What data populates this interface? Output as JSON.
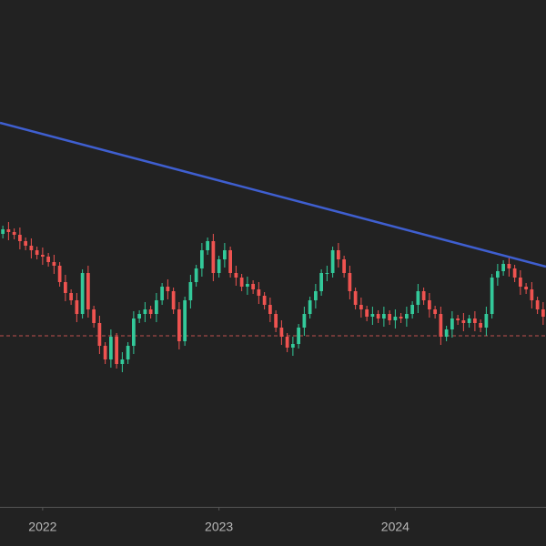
{
  "chart_data": {
    "type": "candlestick",
    "categories": [
      null,
      null,
      null,
      null,
      null,
      null,
      null,
      null,
      null,
      null,
      null,
      null,
      null,
      null,
      null,
      null,
      null,
      null,
      null,
      null,
      null,
      null,
      null,
      null,
      null,
      null,
      null,
      null,
      null,
      null,
      null,
      null,
      null,
      null,
      null,
      null,
      null,
      null,
      null,
      null,
      null,
      null,
      null,
      null,
      null,
      null,
      null,
      null,
      null,
      null,
      null,
      null,
      null,
      null,
      null,
      null,
      null,
      null,
      null,
      null,
      null,
      null,
      null,
      null,
      null,
      null,
      null,
      null,
      null,
      null,
      null,
      null,
      null,
      null,
      null,
      null,
      null,
      null,
      null,
      null,
      null,
      null,
      null,
      null,
      null,
      null,
      null,
      null,
      null,
      null,
      null,
      null,
      null,
      null,
      null,
      null
    ],
    "xticks": [
      {
        "value": 7,
        "label": "2022"
      },
      {
        "value": 38,
        "label": "2023"
      },
      {
        "value": 69,
        "label": "2024"
      }
    ],
    "ylim": [
      0,
      557
    ],
    "up_color": "#33c99a",
    "down_color": "#ef5350",
    "open": [
      300,
      305,
      302,
      299,
      292,
      287,
      282,
      277,
      275,
      269,
      265,
      247,
      235,
      227,
      212,
      257,
      217,
      202,
      177,
      162,
      187,
      157,
      162,
      177,
      207,
      212,
      217,
      212,
      227,
      242,
      237,
      217,
      182,
      227,
      247,
      262,
      282,
      292,
      257,
      272,
      282,
      257,
      252,
      242,
      245,
      239,
      232,
      222,
      212,
      197,
      187,
      175,
      179,
      197,
      212,
      227,
      237,
      257,
      257,
      282,
      272,
      257,
      237,
      222,
      217,
      209,
      212,
      207,
      212,
      205,
      209,
      207,
      212,
      222,
      237,
      227,
      217,
      212,
      187,
      195,
      207,
      205,
      202,
      207,
      202,
      197,
      212,
      252,
      259,
      267,
      262,
      252,
      242,
      239,
      227,
      217
    ],
    "high": [
      309,
      313,
      306,
      307,
      296,
      295,
      286,
      285,
      279,
      277,
      269,
      255,
      239,
      235,
      261,
      265,
      221,
      210,
      181,
      195,
      191,
      170,
      181,
      215,
      216,
      225,
      221,
      235,
      246,
      250,
      241,
      225,
      231,
      255,
      266,
      290,
      296,
      300,
      276,
      290,
      286,
      265,
      256,
      253,
      249,
      247,
      236,
      230,
      216,
      205,
      191,
      187,
      201,
      220,
      231,
      245,
      261,
      265,
      286,
      290,
      276,
      265,
      241,
      230,
      221,
      220,
      216,
      220,
      216,
      217,
      213,
      220,
      226,
      245,
      241,
      235,
      221,
      220,
      199,
      215,
      211,
      213,
      211,
      215,
      206,
      220,
      256,
      267,
      271,
      275,
      266,
      260,
      246,
      247,
      231,
      225
    ],
    "low": [
      295,
      293,
      294,
      283,
      282,
      273,
      272,
      266,
      264,
      256,
      242,
      226,
      222,
      203,
      207,
      208,
      197,
      168,
      157,
      153,
      152,
      148,
      157,
      168,
      202,
      203,
      207,
      203,
      222,
      228,
      212,
      173,
      177,
      218,
      242,
      253,
      277,
      248,
      252,
      263,
      252,
      243,
      237,
      233,
      234,
      223,
      217,
      203,
      192,
      178,
      170,
      166,
      174,
      188,
      207,
      218,
      232,
      248,
      252,
      263,
      252,
      228,
      217,
      208,
      204,
      200,
      202,
      198,
      200,
      196,
      202,
      198,
      207,
      213,
      222,
      208,
      207,
      178,
      182,
      186,
      200,
      193,
      197,
      193,
      192,
      188,
      207,
      243,
      254,
      253,
      247,
      233,
      234,
      218,
      212,
      200
    ],
    "close": [
      305,
      302,
      299,
      292,
      287,
      282,
      277,
      275,
      269,
      265,
      247,
      235,
      227,
      212,
      257,
      217,
      202,
      177,
      162,
      187,
      157,
      162,
      177,
      207,
      212,
      217,
      212,
      227,
      242,
      237,
      217,
      182,
      227,
      247,
      262,
      282,
      292,
      257,
      272,
      282,
      257,
      252,
      242,
      245,
      239,
      232,
      222,
      212,
      197,
      187,
      175,
      179,
      197,
      212,
      227,
      237,
      257,
      257,
      282,
      272,
      257,
      237,
      222,
      217,
      209,
      212,
      207,
      212,
      205,
      209,
      207,
      212,
      222,
      237,
      227,
      217,
      212,
      187,
      195,
      207,
      205,
      202,
      207,
      202,
      197,
      212,
      252,
      259,
      267,
      262,
      252,
      242,
      239,
      227,
      217,
      209
    ],
    "trendline": {
      "color": "#3f5fd0",
      "x": [
        -0.5,
        95.5
      ],
      "values": [
        422,
        264
      ]
    },
    "hline": {
      "value": 188,
      "color": "#c0504d"
    }
  }
}
